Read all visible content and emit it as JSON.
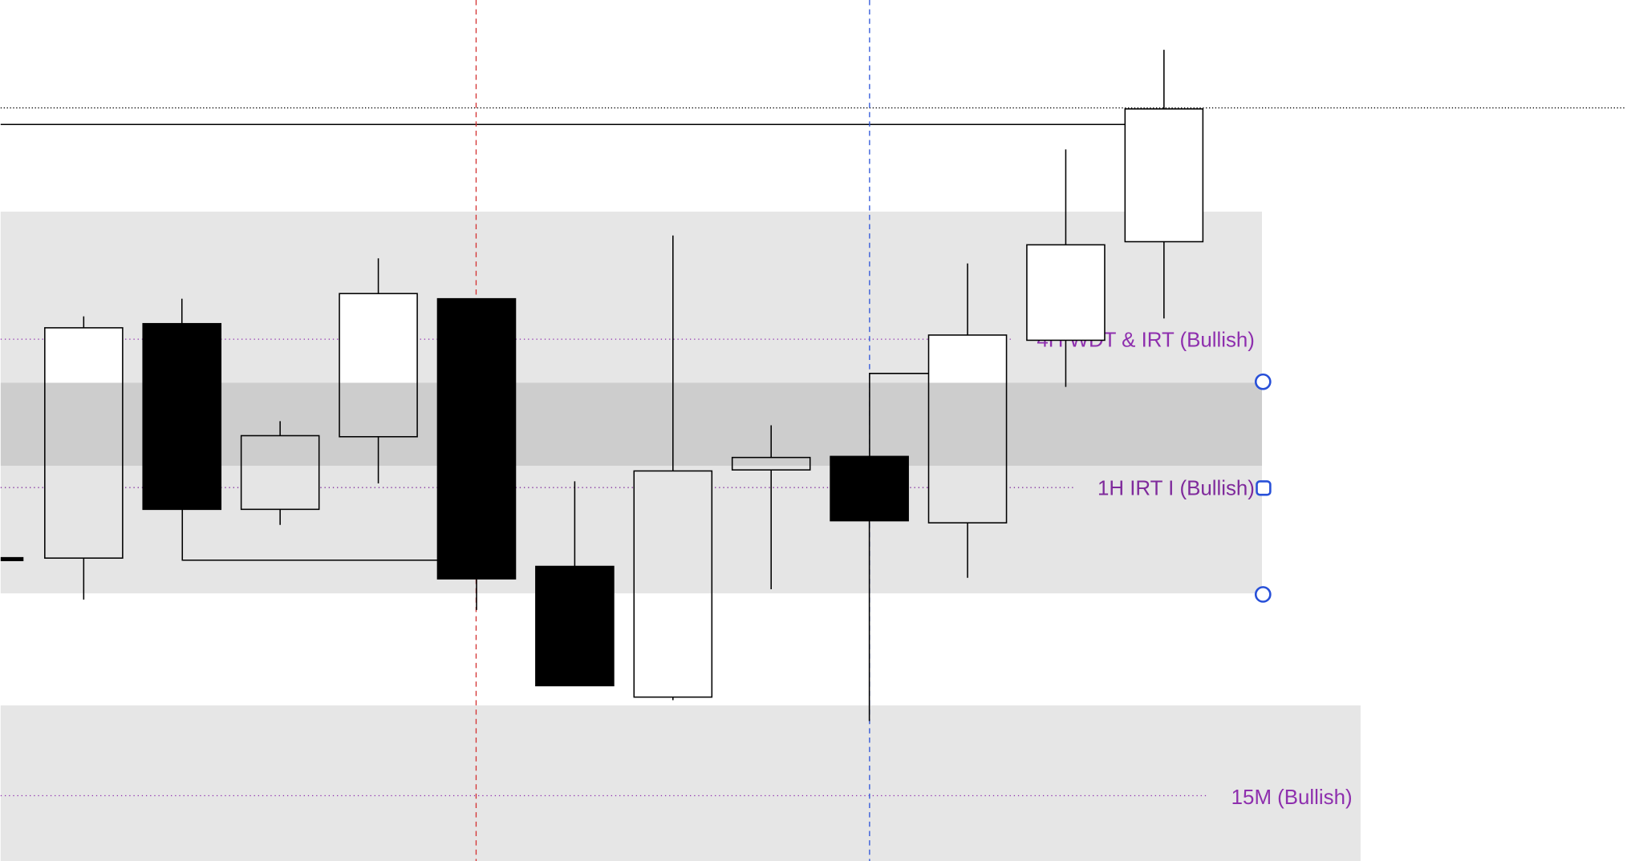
{
  "chart_data": {
    "type": "candlestick",
    "open": [
      292,
      518,
      339,
      409,
      542,
      284,
      158,
      377,
      390,
      326,
      502,
      597
    ],
    "high": [
      525,
      542,
      424,
      581,
      542,
      366,
      603,
      420,
      390,
      576,
      686,
      782
    ],
    "low": [
      252,
      339,
      324,
      364,
      242,
      169,
      155,
      262,
      135,
      273,
      457,
      523
    ],
    "close": [
      514,
      339,
      410,
      547,
      272,
      169,
      376,
      389,
      328,
      507,
      594,
      725
    ],
    "up_color": "#ffffff",
    "down_color": "#000000",
    "ylim": [
      0,
      830
    ],
    "annotations": [
      "4H WDT & IRT (Bullish)",
      "1H IRT I (Bullish)",
      "15M (Bullish)"
    ]
  }
}
